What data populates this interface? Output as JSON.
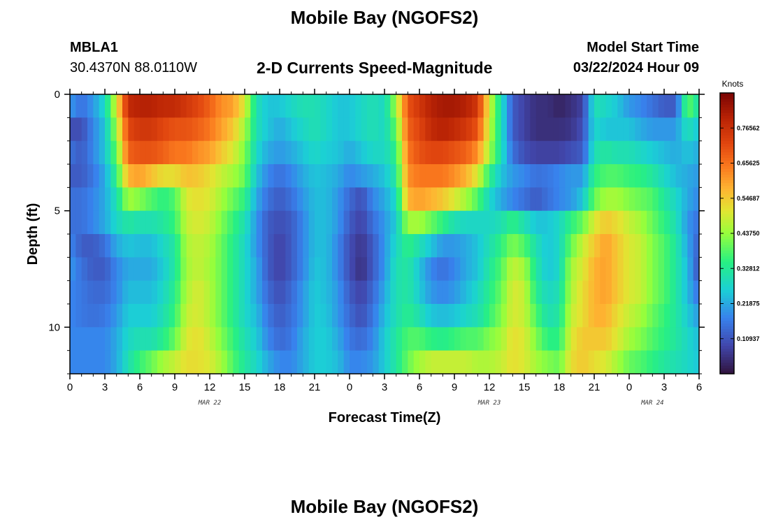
{
  "header": {
    "title": "Mobile Bay (NGOFS2)",
    "station_id": "MBLA1",
    "station_coords": "30.4370N  88.0110W",
    "subtitle": "2-D Currents Speed-Magnitude",
    "start_label": "Model Start Time",
    "start_value": "03/22/2024 Hour 09"
  },
  "footer": {
    "title": "Mobile Bay (NGOFS2)"
  },
  "chart_data": {
    "type": "heatmap",
    "xlabel": "Forecast Time(Z)",
    "ylabel": "Depth (ft)",
    "x_tick_labels": [
      "0",
      "3",
      "6",
      "9",
      "12",
      "15",
      "18",
      "21",
      "0",
      "3",
      "6",
      "9",
      "12",
      "15",
      "18",
      "21",
      "0",
      "3",
      "6"
    ],
    "x_range_hours": [
      0,
      54
    ],
    "date_labels": [
      {
        "text": "MAR 22",
        "hour": 12
      },
      {
        "text": "MAR 23",
        "hour": 36
      },
      {
        "text": "MAR 24",
        "hour": 50
      }
    ],
    "y_tick_labels": [
      "0",
      "5",
      "10"
    ],
    "y_range_ft": [
      0,
      12
    ],
    "y_inverted": true,
    "colorbar": {
      "unit": "Knots",
      "range": [
        0,
        0.875
      ],
      "tick_labels": [
        "0.10937",
        "0.21875",
        "0.32812",
        "0.43750",
        "0.54687",
        "0.65625",
        "0.76562"
      ]
    },
    "depth_rows_ft": [
      0.5,
      1.5,
      2.5,
      3.5,
      4.5,
      5.5,
      6.5,
      7.5,
      8.5,
      9.5,
      10.5,
      11.5
    ],
    "hour_knots": [
      0,
      1,
      2,
      3,
      4,
      5,
      6,
      7,
      8,
      9,
      10,
      11,
      12,
      13,
      14,
      15,
      16,
      17,
      18,
      19,
      20,
      21,
      22,
      23,
      24,
      25,
      26,
      27,
      28,
      29,
      30,
      31,
      32,
      33,
      34,
      35,
      36,
      37,
      38,
      39,
      40,
      41,
      42,
      43,
      44,
      45,
      46,
      47,
      48,
      49,
      50,
      51,
      52,
      53,
      54
    ],
    "speed_knots": [
      [
        0.2,
        0.15,
        0.2,
        0.28,
        0.5,
        0.78,
        0.8,
        0.8,
        0.78,
        0.78,
        0.75,
        0.72,
        0.68,
        0.62,
        0.6,
        0.5,
        0.3,
        0.25,
        0.25,
        0.28,
        0.3,
        0.3,
        0.28,
        0.25,
        0.25,
        0.28,
        0.3,
        0.28,
        0.45,
        0.7,
        0.75,
        0.8,
        0.82,
        0.82,
        0.8,
        0.75,
        0.5,
        0.3,
        0.12,
        0.08,
        0.05,
        0.05,
        0.03,
        0.05,
        0.08,
        0.3,
        0.28,
        0.25,
        0.2,
        0.18,
        0.15,
        0.12,
        0.12,
        0.4,
        0.3
      ],
      [
        0.1,
        0.1,
        0.18,
        0.25,
        0.45,
        0.72,
        0.75,
        0.75,
        0.72,
        0.7,
        0.7,
        0.68,
        0.65,
        0.6,
        0.55,
        0.45,
        0.3,
        0.25,
        0.22,
        0.25,
        0.28,
        0.3,
        0.28,
        0.25,
        0.25,
        0.28,
        0.3,
        0.28,
        0.4,
        0.68,
        0.72,
        0.78,
        0.8,
        0.78,
        0.75,
        0.7,
        0.48,
        0.3,
        0.12,
        0.08,
        0.05,
        0.05,
        0.05,
        0.06,
        0.1,
        0.28,
        0.25,
        0.25,
        0.25,
        0.22,
        0.2,
        0.2,
        0.2,
        0.3,
        0.25
      ],
      [
        0.15,
        0.12,
        0.18,
        0.25,
        0.4,
        0.68,
        0.7,
        0.7,
        0.68,
        0.65,
        0.65,
        0.62,
        0.6,
        0.55,
        0.5,
        0.42,
        0.28,
        0.22,
        0.2,
        0.22,
        0.25,
        0.28,
        0.26,
        0.25,
        0.22,
        0.25,
        0.28,
        0.28,
        0.35,
        0.65,
        0.7,
        0.72,
        0.72,
        0.7,
        0.68,
        0.62,
        0.45,
        0.3,
        0.15,
        0.1,
        0.08,
        0.08,
        0.08,
        0.1,
        0.12,
        0.3,
        0.32,
        0.3,
        0.3,
        0.28,
        0.26,
        0.24,
        0.22,
        0.25,
        0.22
      ],
      [
        0.12,
        0.12,
        0.16,
        0.22,
        0.35,
        0.58,
        0.6,
        0.56,
        0.52,
        0.52,
        0.56,
        0.55,
        0.52,
        0.48,
        0.45,
        0.4,
        0.25,
        0.18,
        0.15,
        0.18,
        0.22,
        0.25,
        0.24,
        0.22,
        0.18,
        0.2,
        0.22,
        0.25,
        0.32,
        0.62,
        0.65,
        0.65,
        0.65,
        0.62,
        0.58,
        0.5,
        0.35,
        0.25,
        0.2,
        0.18,
        0.15,
        0.16,
        0.18,
        0.2,
        0.2,
        0.35,
        0.38,
        0.38,
        0.36,
        0.35,
        0.32,
        0.28,
        0.24,
        0.22,
        0.2
      ],
      [
        0.15,
        0.15,
        0.18,
        0.22,
        0.3,
        0.45,
        0.42,
        0.38,
        0.35,
        0.38,
        0.5,
        0.52,
        0.5,
        0.45,
        0.4,
        0.35,
        0.22,
        0.15,
        0.12,
        0.15,
        0.2,
        0.24,
        0.24,
        0.2,
        0.14,
        0.1,
        0.18,
        0.22,
        0.28,
        0.58,
        0.6,
        0.58,
        0.55,
        0.5,
        0.45,
        0.38,
        0.28,
        0.22,
        0.18,
        0.15,
        0.12,
        0.15,
        0.18,
        0.2,
        0.25,
        0.4,
        0.45,
        0.45,
        0.42,
        0.4,
        0.38,
        0.32,
        0.28,
        0.22,
        0.18
      ],
      [
        0.15,
        0.15,
        0.18,
        0.22,
        0.28,
        0.32,
        0.3,
        0.3,
        0.32,
        0.36,
        0.48,
        0.5,
        0.48,
        0.42,
        0.36,
        0.3,
        0.2,
        0.12,
        0.1,
        0.12,
        0.18,
        0.24,
        0.24,
        0.2,
        0.12,
        0.08,
        0.15,
        0.2,
        0.26,
        0.45,
        0.45,
        0.4,
        0.35,
        0.3,
        0.28,
        0.28,
        0.28,
        0.3,
        0.35,
        0.3,
        0.25,
        0.25,
        0.28,
        0.35,
        0.4,
        0.5,
        0.55,
        0.52,
        0.48,
        0.45,
        0.4,
        0.35,
        0.3,
        0.2,
        0.15
      ],
      [
        0.18,
        0.12,
        0.12,
        0.15,
        0.22,
        0.25,
        0.24,
        0.24,
        0.28,
        0.32,
        0.46,
        0.48,
        0.46,
        0.4,
        0.34,
        0.28,
        0.2,
        0.12,
        0.08,
        0.12,
        0.18,
        0.24,
        0.24,
        0.18,
        0.1,
        0.06,
        0.12,
        0.2,
        0.28,
        0.35,
        0.3,
        0.25,
        0.2,
        0.2,
        0.22,
        0.25,
        0.3,
        0.35,
        0.42,
        0.38,
        0.3,
        0.25,
        0.28,
        0.4,
        0.48,
        0.55,
        0.6,
        0.55,
        0.5,
        0.48,
        0.42,
        0.38,
        0.32,
        0.22,
        0.12
      ],
      [
        0.2,
        0.15,
        0.12,
        0.12,
        0.18,
        0.22,
        0.22,
        0.22,
        0.26,
        0.32,
        0.45,
        0.48,
        0.45,
        0.4,
        0.34,
        0.28,
        0.22,
        0.12,
        0.08,
        0.12,
        0.18,
        0.25,
        0.24,
        0.18,
        0.1,
        0.05,
        0.12,
        0.2,
        0.3,
        0.32,
        0.25,
        0.18,
        0.15,
        0.18,
        0.22,
        0.25,
        0.32,
        0.38,
        0.48,
        0.45,
        0.32,
        0.25,
        0.28,
        0.45,
        0.5,
        0.58,
        0.6,
        0.55,
        0.5,
        0.48,
        0.42,
        0.38,
        0.32,
        0.24,
        0.1
      ],
      [
        0.18,
        0.16,
        0.14,
        0.14,
        0.18,
        0.24,
        0.24,
        0.24,
        0.28,
        0.34,
        0.46,
        0.5,
        0.46,
        0.4,
        0.34,
        0.28,
        0.22,
        0.14,
        0.1,
        0.14,
        0.2,
        0.26,
        0.24,
        0.2,
        0.12,
        0.08,
        0.14,
        0.22,
        0.3,
        0.32,
        0.26,
        0.2,
        0.18,
        0.2,
        0.24,
        0.28,
        0.34,
        0.4,
        0.5,
        0.48,
        0.34,
        0.28,
        0.3,
        0.46,
        0.52,
        0.58,
        0.6,
        0.55,
        0.5,
        0.48,
        0.42,
        0.38,
        0.32,
        0.24,
        0.15
      ],
      [
        0.18,
        0.16,
        0.15,
        0.16,
        0.2,
        0.26,
        0.26,
        0.26,
        0.3,
        0.36,
        0.48,
        0.5,
        0.46,
        0.4,
        0.34,
        0.28,
        0.24,
        0.16,
        0.12,
        0.15,
        0.2,
        0.26,
        0.25,
        0.2,
        0.14,
        0.1,
        0.16,
        0.24,
        0.3,
        0.34,
        0.3,
        0.25,
        0.24,
        0.25,
        0.28,
        0.3,
        0.36,
        0.42,
        0.5,
        0.48,
        0.38,
        0.3,
        0.32,
        0.48,
        0.52,
        0.58,
        0.58,
        0.52,
        0.48,
        0.45,
        0.4,
        0.36,
        0.32,
        0.26,
        0.2
      ],
      [
        0.18,
        0.18,
        0.18,
        0.18,
        0.22,
        0.28,
        0.3,
        0.3,
        0.34,
        0.4,
        0.5,
        0.52,
        0.48,
        0.42,
        0.36,
        0.3,
        0.26,
        0.18,
        0.14,
        0.16,
        0.22,
        0.26,
        0.26,
        0.22,
        0.16,
        0.14,
        0.18,
        0.26,
        0.32,
        0.38,
        0.38,
        0.35,
        0.34,
        0.36,
        0.38,
        0.38,
        0.42,
        0.45,
        0.52,
        0.5,
        0.42,
        0.35,
        0.35,
        0.5,
        0.55,
        0.55,
        0.55,
        0.5,
        0.45,
        0.42,
        0.38,
        0.35,
        0.32,
        0.28,
        0.24
      ],
      [
        0.18,
        0.18,
        0.18,
        0.18,
        0.22,
        0.3,
        0.36,
        0.4,
        0.45,
        0.48,
        0.52,
        0.52,
        0.5,
        0.45,
        0.38,
        0.32,
        0.28,
        0.22,
        0.18,
        0.18,
        0.22,
        0.26,
        0.26,
        0.24,
        0.18,
        0.18,
        0.2,
        0.26,
        0.32,
        0.4,
        0.45,
        0.48,
        0.48,
        0.48,
        0.48,
        0.46,
        0.46,
        0.48,
        0.52,
        0.5,
        0.45,
        0.42,
        0.4,
        0.52,
        0.55,
        0.52,
        0.5,
        0.45,
        0.4,
        0.38,
        0.35,
        0.32,
        0.3,
        0.28,
        0.25
      ]
    ]
  }
}
